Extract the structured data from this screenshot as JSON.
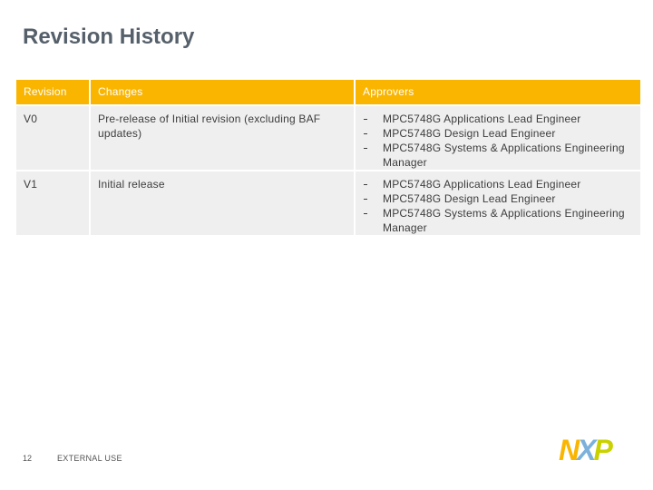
{
  "title": "Revision History",
  "table": {
    "header": [
      "Revision",
      "Changes",
      "Approvers"
    ],
    "rows": [
      {
        "revision": "V0",
        "changes": "Pre-release of Initial revision (excluding BAF updates)",
        "approvers": [
          "MPC5748G Applications Lead Engineer",
          "MPC5748G Design Lead Engineer",
          "MPC5748G Systems & Applications Engineering Manager"
        ]
      },
      {
        "revision": "V1",
        "changes": "Initial release",
        "approvers": [
          "MPC5748G Applications Lead Engineer",
          "MPC5748G Design Lead Engineer",
          "MPC5748G Systems & Applications Engineering Manager"
        ]
      }
    ]
  },
  "footer": {
    "page": "12",
    "classification": "EXTERNAL USE",
    "logo": [
      "N",
      "X",
      "P"
    ]
  }
}
